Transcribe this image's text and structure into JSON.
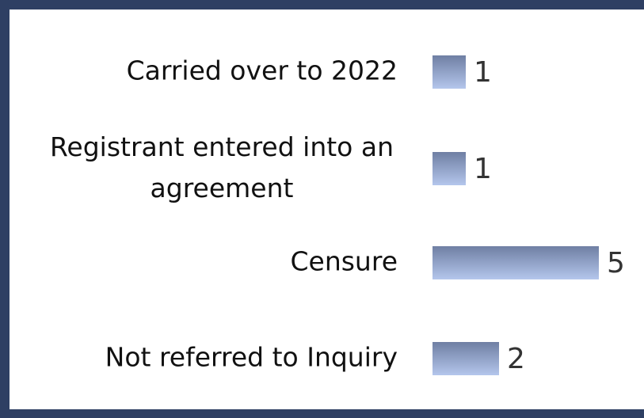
{
  "chart_data": {
    "type": "bar",
    "orientation": "horizontal",
    "categories": [
      "Carried over to 2022",
      "Registrant entered into an agreement",
      "Censure",
      "Not referred to Inquiry"
    ],
    "values": [
      1,
      1,
      5,
      2
    ]
  }
}
